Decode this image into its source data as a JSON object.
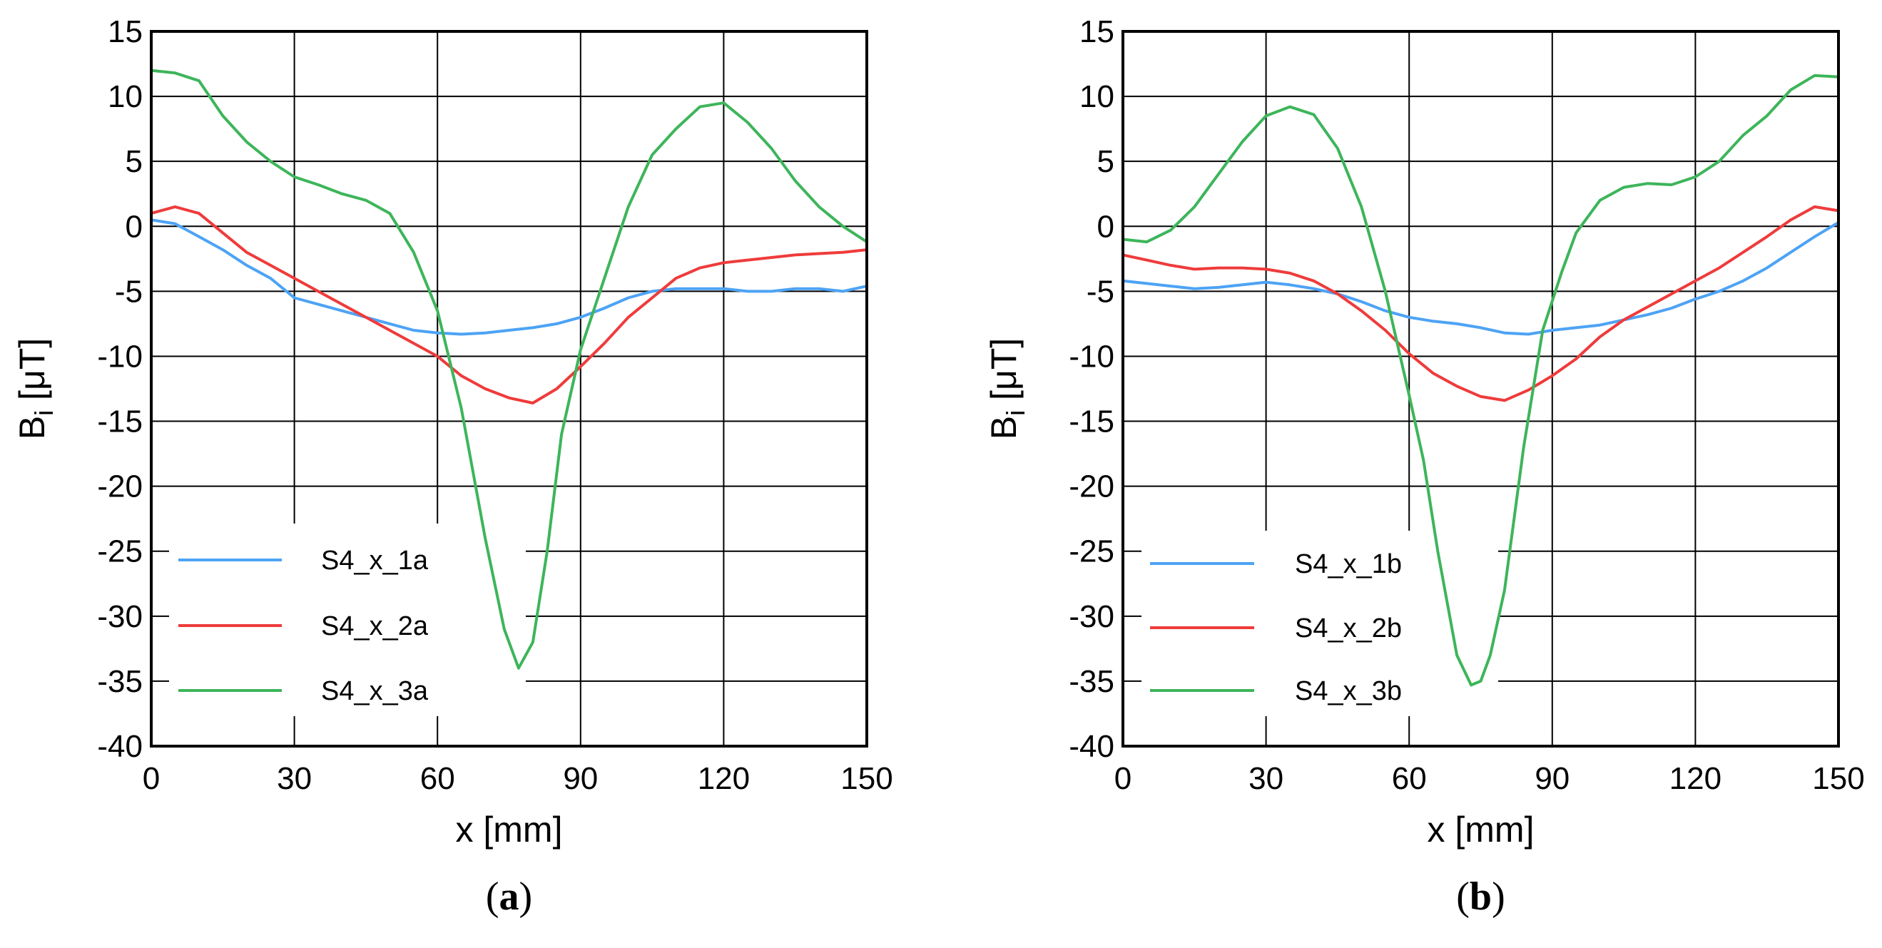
{
  "figure": {
    "panels": [
      "(a)",
      "(b)"
    ]
  },
  "chart_data": [
    {
      "type": "line",
      "panel_label": "(a)",
      "panel_letter": "a",
      "xlabel": "x [mm]",
      "ylabel": "B",
      "ylabel_subscript": "i",
      "ylabel_unit": " [μT]",
      "xlim": [
        0,
        150
      ],
      "ylim": [
        -40,
        15
      ],
      "xticks": [
        0,
        30,
        60,
        90,
        120,
        150
      ],
      "yticks": [
        15,
        10,
        5,
        0,
        -5,
        -10,
        -15,
        -20,
        -25,
        -30,
        -35,
        -40
      ],
      "grid": true,
      "legend_position": "bottom-left",
      "series": [
        {
          "name": "S4_x_1a",
          "color": "#4da3f5",
          "x": [
            0,
            5,
            10,
            15,
            20,
            25,
            30,
            35,
            40,
            45,
            50,
            55,
            60,
            65,
            70,
            75,
            80,
            85,
            90,
            95,
            100,
            105,
            110,
            115,
            120,
            125,
            130,
            135,
            140,
            145,
            150
          ],
          "y": [
            0.5,
            0.2,
            -0.8,
            -1.8,
            -3,
            -4,
            -5.5,
            -6,
            -6.5,
            -7,
            -7.5,
            -8,
            -8.2,
            -8.3,
            -8.2,
            -8,
            -7.8,
            -7.5,
            -7,
            -6.3,
            -5.5,
            -5,
            -4.8,
            -4.8,
            -4.8,
            -5,
            -5,
            -4.8,
            -4.8,
            -5,
            -4.6
          ]
        },
        {
          "name": "S4_x_2a",
          "color": "#ef3b3b",
          "x": [
            0,
            5,
            10,
            15,
            20,
            25,
            30,
            35,
            40,
            45,
            50,
            55,
            60,
            65,
            70,
            75,
            80,
            85,
            90,
            95,
            100,
            105,
            110,
            115,
            120,
            125,
            130,
            135,
            140,
            145,
            150
          ],
          "y": [
            1,
            1.5,
            1,
            -0.5,
            -2,
            -3,
            -4,
            -5,
            -6,
            -7,
            -8,
            -9,
            -10,
            -11.5,
            -12.5,
            -13.2,
            -13.6,
            -12.5,
            -10.8,
            -9,
            -7,
            -5.5,
            -4,
            -3.2,
            -2.8,
            -2.6,
            -2.4,
            -2.2,
            -2.1,
            -2,
            -1.8
          ]
        },
        {
          "name": "S4_x_3a",
          "color": "#3db55a",
          "x": [
            0,
            5,
            10,
            15,
            20,
            25,
            30,
            35,
            40,
            45,
            50,
            55,
            60,
            65,
            70,
            74,
            77,
            80,
            83,
            86,
            90,
            95,
            100,
            105,
            110,
            115,
            120,
            125,
            130,
            135,
            140,
            145,
            150
          ],
          "y": [
            12,
            11.8,
            11.2,
            8.5,
            6.5,
            5,
            3.8,
            3.2,
            2.5,
            2,
            1,
            -2,
            -6.5,
            -14,
            -24,
            -31,
            -34,
            -32,
            -25,
            -16,
            -9.5,
            -4,
            1.5,
            5.5,
            7.5,
            9.2,
            9.5,
            8,
            6,
            3.5,
            1.5,
            0,
            -1.2
          ]
        }
      ]
    },
    {
      "type": "line",
      "panel_label": "(b)",
      "panel_letter": "b",
      "xlabel": "x [mm]",
      "ylabel": "B",
      "ylabel_subscript": "i",
      "ylabel_unit": " [μT]",
      "xlim": [
        0,
        150
      ],
      "ylim": [
        -40,
        15
      ],
      "xticks": [
        0,
        30,
        60,
        90,
        120,
        150
      ],
      "yticks": [
        15,
        10,
        5,
        0,
        -5,
        -10,
        -15,
        -20,
        -25,
        -30,
        -35,
        -40
      ],
      "grid": true,
      "legend_position": "bottom-left",
      "series": [
        {
          "name": "S4_x_1b",
          "color": "#4da3f5",
          "x": [
            0,
            5,
            10,
            15,
            20,
            25,
            30,
            35,
            40,
            45,
            50,
            55,
            60,
            65,
            70,
            75,
            80,
            85,
            90,
            95,
            100,
            105,
            110,
            115,
            120,
            125,
            130,
            135,
            140,
            145,
            150
          ],
          "y": [
            -4.2,
            -4.4,
            -4.6,
            -4.8,
            -4.7,
            -4.5,
            -4.3,
            -4.5,
            -4.8,
            -5.2,
            -5.8,
            -6.5,
            -7,
            -7.3,
            -7.5,
            -7.8,
            -8.2,
            -8.3,
            -8,
            -7.8,
            -7.6,
            -7.2,
            -6.8,
            -6.3,
            -5.6,
            -5,
            -4.2,
            -3.2,
            -2,
            -0.8,
            0.3
          ]
        },
        {
          "name": "S4_x_2b",
          "color": "#ef3b3b",
          "x": [
            0,
            5,
            10,
            15,
            20,
            25,
            30,
            35,
            40,
            45,
            50,
            55,
            60,
            65,
            70,
            75,
            80,
            85,
            90,
            95,
            100,
            105,
            110,
            115,
            120,
            125,
            130,
            135,
            140,
            145,
            150
          ],
          "y": [
            -2.2,
            -2.6,
            -3,
            -3.3,
            -3.2,
            -3.2,
            -3.3,
            -3.6,
            -4.2,
            -5.2,
            -6.5,
            -8,
            -9.8,
            -11.3,
            -12.3,
            -13.1,
            -13.4,
            -12.6,
            -11.5,
            -10.2,
            -8.5,
            -7.2,
            -6.2,
            -5.2,
            -4.2,
            -3.2,
            -2,
            -0.8,
            0.5,
            1.5,
            1.2
          ]
        },
        {
          "name": "S4_x_3b",
          "color": "#3db55a",
          "x": [
            0,
            5,
            10,
            15,
            20,
            25,
            30,
            35,
            40,
            45,
            50,
            55,
            60,
            63,
            66,
            70,
            73,
            75,
            77,
            80,
            84,
            88,
            92,
            95,
            100,
            105,
            110,
            115,
            120,
            125,
            130,
            135,
            140,
            145,
            150
          ],
          "y": [
            -1,
            -1.2,
            -0.3,
            1.5,
            4,
            6.5,
            8.5,
            9.2,
            8.6,
            6,
            1.5,
            -5,
            -13,
            -18,
            -25,
            -33,
            -35.3,
            -35,
            -33,
            -28,
            -17,
            -8,
            -3.5,
            -0.5,
            2,
            3,
            3.3,
            3.2,
            3.8,
            5,
            7,
            8.5,
            10.5,
            11.6,
            11.5
          ]
        }
      ]
    }
  ]
}
